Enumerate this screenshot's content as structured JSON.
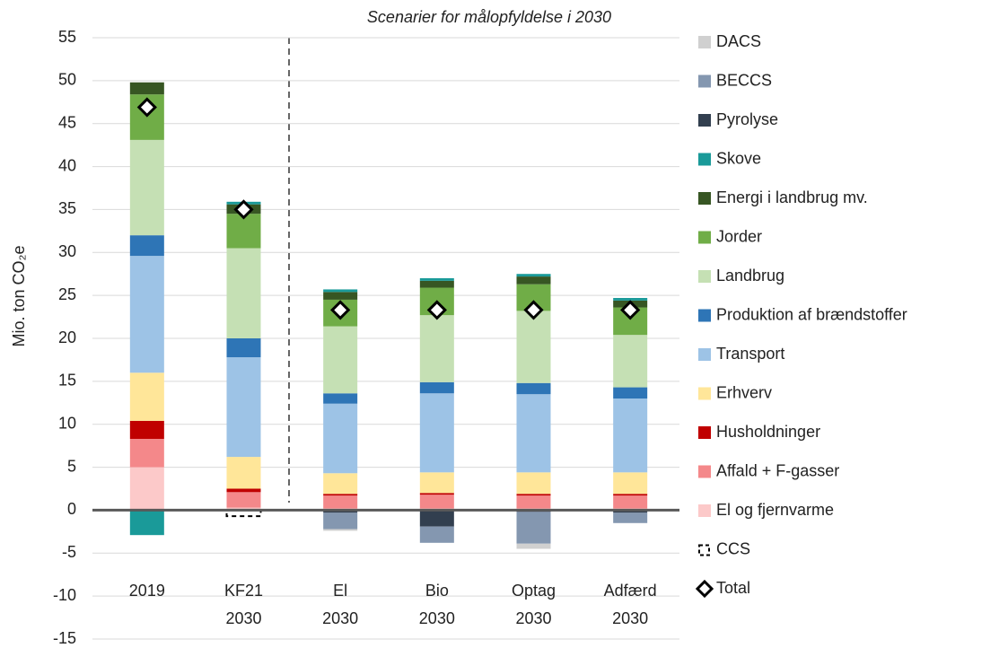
{
  "chart_data": {
    "type": "stacked-bar",
    "annotation": "Scenarier for målopfyldelse i 2030",
    "y_label": "Mio. ton CO₂e",
    "categories": [
      "2019",
      "KF21\n2030",
      "El\n2030",
      "Bio\n2030",
      "Optag\n2030",
      "Adfærd\n2030"
    ],
    "ylim": [
      -15,
      55
    ],
    "yticks": [
      -15,
      -10,
      -5,
      0,
      5,
      10,
      15,
      20,
      25,
      30,
      35,
      40,
      45,
      50,
      55
    ],
    "grid": true,
    "series": [
      {
        "name": "El og fjernvarme",
        "color": "#fcc9c9",
        "kind": "bar",
        "values": [
          5.0,
          0.3,
          0.2,
          0.2,
          0.2,
          0.2
        ]
      },
      {
        "name": "Affald + F-gasser",
        "color": "#f4888a",
        "kind": "bar",
        "values": [
          3.3,
          1.8,
          1.5,
          1.6,
          1.5,
          1.5
        ]
      },
      {
        "name": "Husholdninger",
        "color": "#c00000",
        "kind": "bar",
        "values": [
          2.1,
          0.4,
          0.2,
          0.2,
          0.2,
          0.2
        ]
      },
      {
        "name": "Erhverv",
        "color": "#ffe699",
        "kind": "bar",
        "values": [
          5.6,
          3.7,
          2.4,
          2.4,
          2.5,
          2.5
        ]
      },
      {
        "name": "Transport",
        "color": "#9dc3e6",
        "kind": "bar",
        "values": [
          13.6,
          11.6,
          8.1,
          9.2,
          9.1,
          8.6
        ]
      },
      {
        "name": "Produktion af brændstoffer",
        "color": "#2e75b6",
        "kind": "bar",
        "values": [
          2.4,
          2.2,
          1.2,
          1.3,
          1.3,
          1.3
        ]
      },
      {
        "name": "Landbrug",
        "color": "#c5e0b4",
        "kind": "bar",
        "values": [
          11.1,
          10.5,
          7.8,
          7.8,
          8.4,
          6.1
        ]
      },
      {
        "name": "Jorder",
        "color": "#70ad47",
        "kind": "bar",
        "values": [
          5.3,
          4.0,
          3.1,
          3.2,
          3.1,
          3.2
        ]
      },
      {
        "name": "Energi i landbrug mv.",
        "color": "#375623",
        "kind": "bar",
        "values": [
          1.4,
          1.1,
          0.9,
          0.8,
          0.9,
          0.8
        ]
      },
      {
        "name": "Skove",
        "color": "#1a9a99",
        "kind": "bar",
        "values": [
          -2.9,
          0.3,
          0.3,
          0.3,
          0.3,
          0.3
        ]
      },
      {
        "name": "Pyrolyse",
        "color": "#323f4f",
        "kind": "bar",
        "values": [
          null,
          null,
          -0.3,
          -1.9,
          -0.2,
          -0.3
        ]
      },
      {
        "name": "BECCS",
        "color": "#8497b0",
        "kind": "bar",
        "values": [
          null,
          null,
          -1.9,
          -1.9,
          -3.7,
          -1.2
        ]
      },
      {
        "name": "DACS",
        "color": "#d0d0d0",
        "kind": "bar",
        "values": [
          null,
          null,
          -0.2,
          null,
          -0.6,
          null
        ]
      },
      {
        "name": "CCS",
        "color": "#000000",
        "kind": "outline",
        "values": [
          null,
          -0.7,
          null,
          null,
          null,
          null
        ]
      },
      {
        "name": "Total",
        "color": "#000000",
        "kind": "marker",
        "values": [
          46.9,
          35.0,
          23.3,
          23.3,
          23.3,
          23.3
        ]
      }
    ]
  }
}
